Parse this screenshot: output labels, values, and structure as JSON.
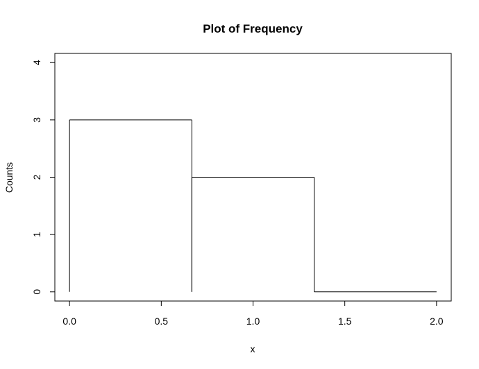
{
  "chart_data": {
    "type": "bar",
    "subtype": "frequency-step-plot",
    "title": "Plot of Frequency",
    "xlabel": "x",
    "ylabel": "Counts",
    "xlim": [
      -0.08,
      2.08
    ],
    "ylim": [
      -0.16,
      4.16
    ],
    "xticks": [
      "0.0",
      "0.5",
      "1.0",
      "1.5",
      "2.0"
    ],
    "yticks": [
      "0",
      "1",
      "2",
      "3",
      "4"
    ],
    "bins": [
      {
        "x0": 0.0,
        "x1": 0.6667,
        "count": 3
      },
      {
        "x0": 0.6667,
        "x1": 1.3333,
        "count": 2
      },
      {
        "x0": 1.3333,
        "x1": 2.0,
        "count": 0
      }
    ],
    "grid": false,
    "line_color": "#000000"
  }
}
